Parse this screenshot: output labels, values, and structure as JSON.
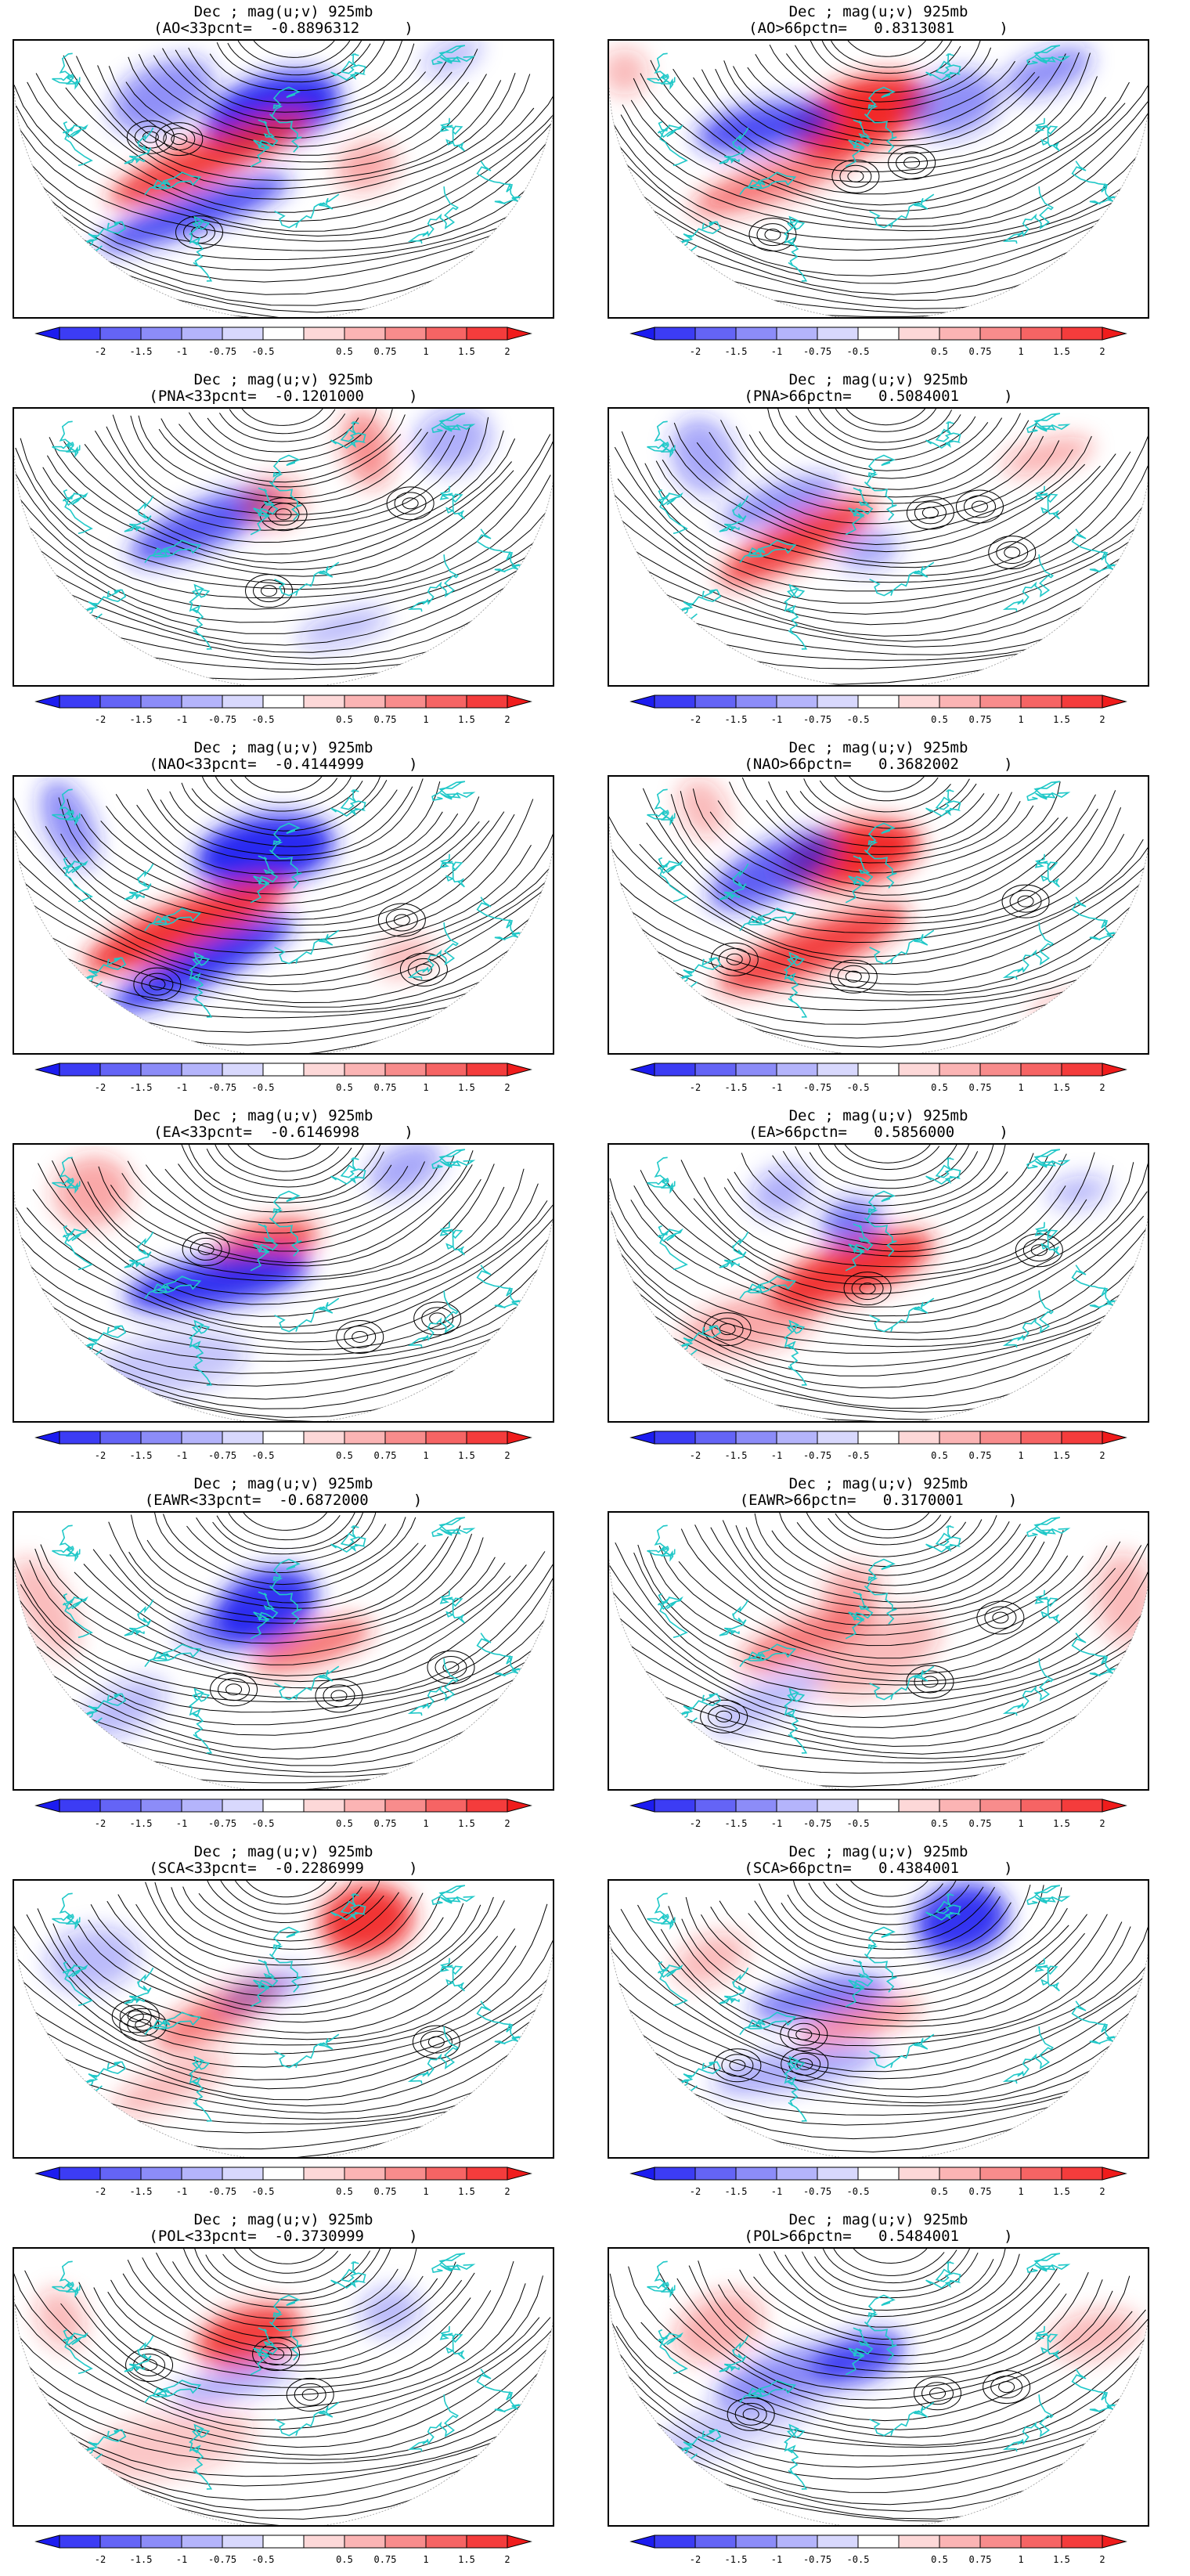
{
  "colorbar": {
    "labels": [
      "-2",
      "-1.5",
      "-1",
      "-0.75",
      "-0.5",
      "0.5",
      "0.75",
      "1",
      "1.5",
      "2"
    ],
    "colors": [
      "#1c1cf0",
      "#3c3cf4",
      "#6464f6",
      "#8c8cf8",
      "#b4b4fb",
      "#d8d8fd",
      "#ffffff",
      "#fdd8d8",
      "#fbb4b4",
      "#f88c8c",
      "#f66464",
      "#f43c3c",
      "#f01c1c"
    ],
    "outline": "#000000"
  },
  "colors": {
    "coast": "#20c8c8",
    "stream": "#000000",
    "positive": "#f02020",
    "negative": "#2020f0"
  },
  "panels": [
    {
      "line1": "Dec ; mag(u;v) 925mb",
      "line2": "(AO<33pcnt=  -0.8896312     )"
    },
    {
      "line1": "Dec ; mag(u;v) 925mb",
      "line2": "(AO>66pctn=   0.8313081     )"
    },
    {
      "line1": "Dec ; mag(u;v) 925mb",
      "line2": "(PNA<33pcnt=  -0.1201000     )"
    },
    {
      "line1": "Dec ; mag(u;v) 925mb",
      "line2": "(PNA>66pctn=   0.5084001     )"
    },
    {
      "line1": "Dec ; mag(u;v) 925mb",
      "line2": "(NAO<33pcnt=  -0.4144999     )"
    },
    {
      "line1": "Dec ; mag(u;v) 925mb",
      "line2": "(NAO>66pctn=   0.3682002     )"
    },
    {
      "line1": "Dec ; mag(u;v) 925mb",
      "line2": "(EA<33pcnt=  -0.6146998     )"
    },
    {
      "line1": "Dec ; mag(u;v) 925mb",
      "line2": "(EA>66pctn=   0.5856000     )"
    },
    {
      "line1": "Dec ; mag(u;v) 925mb",
      "line2": "(EAWR<33pcnt=  -0.6872000     )"
    },
    {
      "line1": "Dec ; mag(u;v) 925mb",
      "line2": "(EAWR>66pctn=   0.3170001     )"
    },
    {
      "line1": "Dec ; mag(u;v) 925mb",
      "line2": "(SCA<33pcnt=  -0.2286999     )"
    },
    {
      "line1": "Dec ; mag(u;v) 925mb",
      "line2": "(SCA>66pctn=   0.4384001     )"
    },
    {
      "line1": "Dec ; mag(u;v) 925mb",
      "line2": "(POL<33pcnt=  -0.3730999     )"
    },
    {
      "line1": "Dec ; mag(u;v) 925mb",
      "line2": "(POL>66pctn=   0.5484001     )"
    }
  ]
}
